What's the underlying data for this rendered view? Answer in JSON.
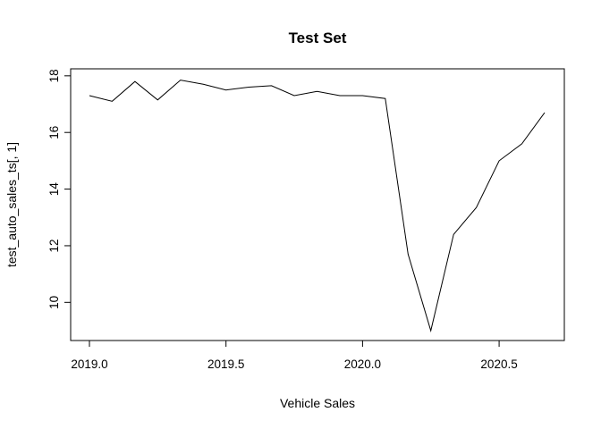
{
  "chart_data": {
    "type": "line",
    "title": "Test Set",
    "xlabel": "Vehicle Sales",
    "ylabel": "test_auto_sales_ts[, 1]",
    "xlim": [
      2019.0,
      2020.67
    ],
    "ylim": [
      9.0,
      17.9
    ],
    "x_ticks": [
      2019.0,
      2019.5,
      2020.0,
      2020.5
    ],
    "x_tick_labels": [
      "2019.0",
      "2019.5",
      "2020.0",
      "2020.5"
    ],
    "y_ticks": [
      10,
      12,
      14,
      16,
      18
    ],
    "y_tick_labels": [
      "10",
      "12",
      "14",
      "16",
      "18"
    ],
    "grid": false,
    "legend": "none",
    "line_color": "#000000",
    "series": [
      {
        "x": [
          2019.0,
          2019.0833,
          2019.1667,
          2019.25,
          2019.3333,
          2019.4167,
          2019.5,
          2019.5833,
          2019.6667,
          2019.75,
          2019.8333,
          2019.9167,
          2020.0,
          2020.0833,
          2020.1667,
          2020.25,
          2020.3333,
          2020.4167,
          2020.5,
          2020.5833,
          2020.6667
        ],
        "values": [
          17.3,
          17.1,
          17.8,
          17.15,
          17.85,
          17.7,
          17.5,
          17.6,
          17.65,
          17.3,
          17.45,
          17.3,
          17.3,
          17.2,
          11.7,
          9.0,
          12.4,
          13.35,
          15.0,
          15.6,
          16.7
        ]
      }
    ]
  }
}
